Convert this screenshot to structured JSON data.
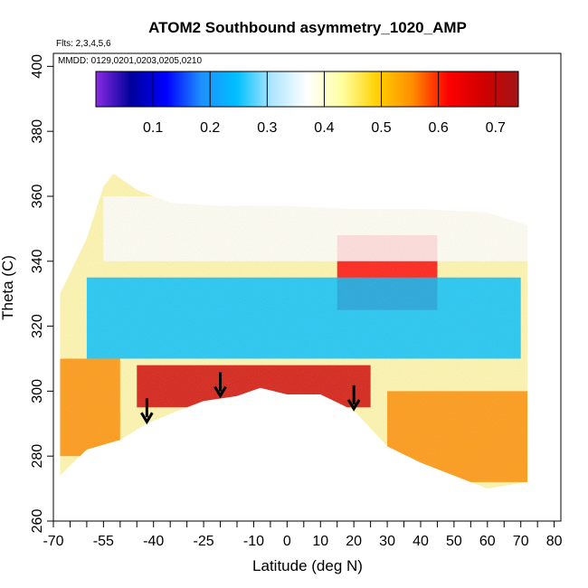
{
  "chart_data": {
    "type": "heatmap",
    "title": "ATOM2 Southbound asymmetry_1020_AMP",
    "notes": [
      "Flts: 2,3,4,5,6",
      "MMDD: 0129,0201,0203,0205,0210"
    ],
    "xlabel": "Latitude (deg N)",
    "ylabel": "Theta (C)",
    "xlim": [
      -70,
      82
    ],
    "ylim": [
      260,
      404
    ],
    "x_ticks": [
      -70,
      -55,
      -40,
      -25,
      -10,
      0,
      10,
      20,
      30,
      40,
      50,
      60,
      70,
      80
    ],
    "y_ticks": [
      260,
      280,
      300,
      320,
      340,
      360,
      380,
      400
    ],
    "colorbar": {
      "range": [
        0.0,
        0.74
      ],
      "ticks": [
        0.1,
        0.2,
        0.3,
        0.4,
        0.5,
        0.6,
        0.7
      ],
      "colors": [
        "#8a2be2",
        "#00009c",
        "#0000ff",
        "#1e90ff",
        "#00bfff",
        "#aee6ff",
        "#ffffff",
        "#ffffa0",
        "#ffd000",
        "#ff8c00",
        "#ff0000",
        "#d00000",
        "#a31515"
      ]
    },
    "lower_boundary": [
      [
        -68,
        274
      ],
      [
        -60,
        282
      ],
      [
        -50,
        285
      ],
      [
        -42,
        290
      ],
      [
        -35,
        293
      ],
      [
        -25,
        297
      ],
      [
        -15,
        298.5
      ],
      [
        -8,
        301
      ],
      [
        0,
        299
      ],
      [
        10,
        299
      ],
      [
        20,
        294
      ],
      [
        30,
        283
      ],
      [
        40,
        278
      ],
      [
        50,
        274
      ],
      [
        60,
        270
      ],
      [
        72,
        272
      ]
    ],
    "upper_boundary": [
      [
        -68,
        330
      ],
      [
        -60,
        347
      ],
      [
        -55,
        363
      ],
      [
        -52,
        367
      ],
      [
        -45,
        362
      ],
      [
        -35,
        358
      ],
      [
        -20,
        357
      ],
      [
        0,
        357
      ],
      [
        20,
        356
      ],
      [
        40,
        356
      ],
      [
        60,
        355
      ],
      [
        72,
        351
      ]
    ],
    "regions": [
      {
        "region": "lower tropical band",
        "x_range": [
          -45,
          25
        ],
        "theta_range": [
          295,
          308
        ],
        "value": 0.65
      },
      {
        "region": "northern high-theta wedge",
        "x_range": [
          15,
          45
        ],
        "theta_range": [
          325,
          348
        ],
        "value": 0.62
      },
      {
        "region": "mid-level band",
        "x_range": [
          -60,
          70
        ],
        "theta_range": [
          310,
          335
        ],
        "value": 0.25
      },
      {
        "region": "southern lower layer",
        "x_range": [
          -68,
          -50
        ],
        "theta_range": [
          280,
          310
        ],
        "value": 0.55
      },
      {
        "region": "northern lower layer",
        "x_range": [
          30,
          72
        ],
        "theta_range": [
          272,
          300
        ],
        "value": 0.55
      },
      {
        "region": "upper layer",
        "x_range": [
          -55,
          72
        ],
        "theta_range": [
          340,
          360
        ],
        "value": 0.4
      }
    ],
    "arrows": [
      {
        "x": -42,
        "theta": 290
      },
      {
        "x": -20,
        "theta": 298
      },
      {
        "x": 20,
        "theta": 294
      }
    ]
  }
}
